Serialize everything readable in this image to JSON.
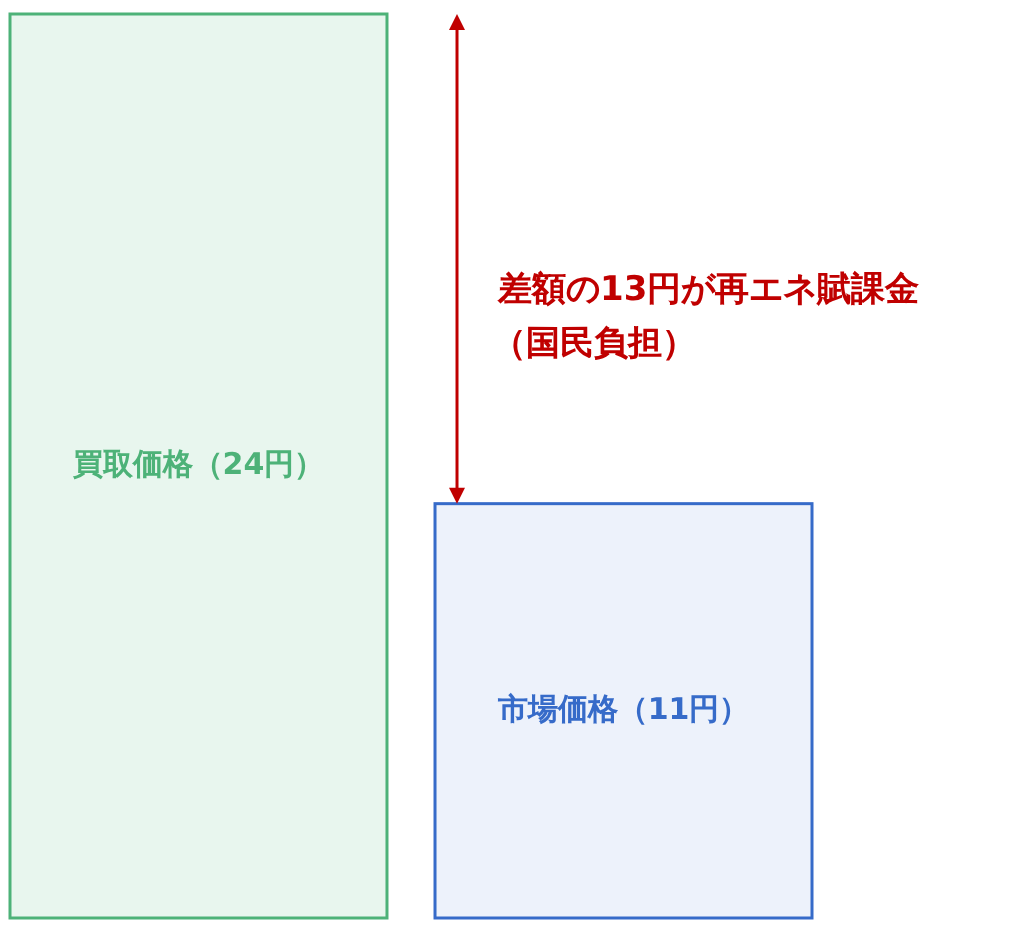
{
  "chart_data": {
    "type": "bar",
    "categories": [
      null,
      null
    ],
    "values": [
      24,
      11
    ],
    "colors": [
      "#e8f6ee",
      "#edf2fb"
    ],
    "value_labels": [
      "買取価格（24円）",
      "市場価格（11円）"
    ],
    "annotations": [
      "差額の13円が再エネ賦課金",
      "（国民負担）"
    ]
  }
}
